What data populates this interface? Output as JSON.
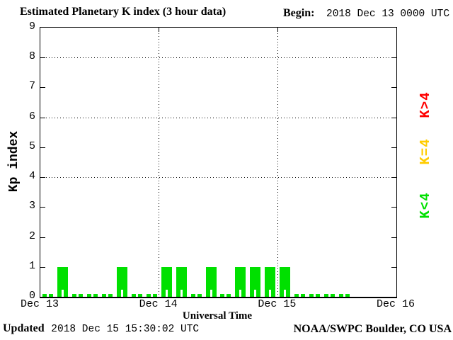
{
  "header": {
    "title": "Estimated Planetary K index (3 hour data)",
    "begin_label": "Begin:",
    "begin_value": "2018 Dec 13 0000 UTC"
  },
  "footer": {
    "updated_label": "Updated",
    "updated_value": "2018 Dec 15 15:30:02 UTC",
    "credit": "NOAA/SWPC Boulder, CO USA"
  },
  "chart_data": {
    "type": "bar",
    "title": "Estimated Planetary K index (3 hour data)",
    "xlabel": "Universal Time",
    "ylabel": "Kp index",
    "ylim": [
      0,
      9
    ],
    "yticks": [
      0,
      1,
      2,
      3,
      4,
      5,
      6,
      7,
      8,
      9
    ],
    "grid_y": [
      4,
      6,
      8
    ],
    "grid_x_day_boundaries": [
      1,
      2
    ],
    "x_tick_labels": [
      "Dec 13",
      "Dec 14",
      "Dec 15",
      "Dec 16"
    ],
    "bar_interval_hours": 3,
    "bars_per_day": 8,
    "bar_color": "#00e000",
    "series": [
      {
        "day": "Dec 13",
        "values": [
          0,
          1,
          0,
          0,
          0,
          1,
          0,
          0
        ]
      },
      {
        "day": "Dec 14",
        "values": [
          1,
          1,
          0,
          1,
          0,
          1,
          1,
          1
        ]
      },
      {
        "day": "Dec 15",
        "values": [
          1,
          0,
          0,
          0,
          0
        ]
      }
    ],
    "legend_position": "right",
    "legend": [
      {
        "label": "K>4",
        "color": "#ff0000"
      },
      {
        "label": "K=4",
        "color": "#ffcc00"
      },
      {
        "label": "K<4",
        "color": "#00e000"
      }
    ]
  }
}
